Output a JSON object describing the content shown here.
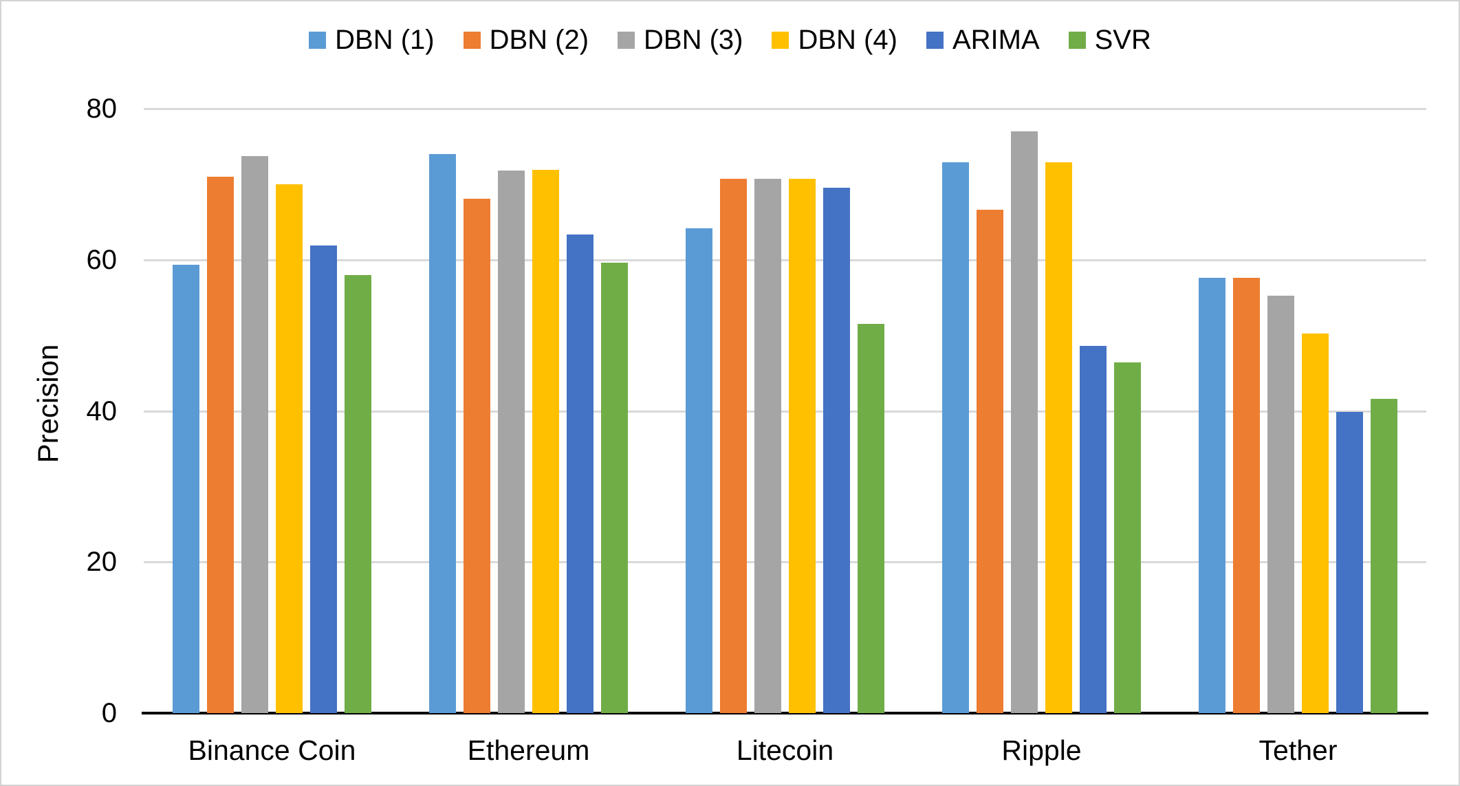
{
  "chart_data": {
    "type": "bar",
    "title": "",
    "xlabel": "",
    "ylabel": "Precision",
    "categories": [
      "Binance Coin",
      "Ethereum",
      "Litecoin",
      "Ripple",
      "Tether"
    ],
    "series": [
      {
        "name": "DBN (1)",
        "color": "#5B9BD5",
        "values": [
          59.3,
          74.0,
          64.2,
          72.9,
          57.6
        ]
      },
      {
        "name": "DBN (2)",
        "color": "#ED7D31",
        "values": [
          71.0,
          68.1,
          70.7,
          66.6,
          57.6
        ]
      },
      {
        "name": "DBN (3)",
        "color": "#A5A5A5",
        "values": [
          73.7,
          71.8,
          70.7,
          77.0,
          55.2
        ]
      },
      {
        "name": "DBN (4)",
        "color": "#FFC000",
        "values": [
          70.0,
          71.9,
          70.7,
          72.9,
          50.2
        ]
      },
      {
        "name": "ARIMA",
        "color": "#4472C4",
        "values": [
          61.9,
          63.3,
          69.5,
          48.6,
          39.9
        ]
      },
      {
        "name": "SVR",
        "color": "#70AD47",
        "values": [
          58.0,
          59.6,
          51.5,
          46.4,
          41.6
        ]
      }
    ],
    "y_ticks": [
      0,
      20,
      40,
      60,
      80
    ],
    "ylim": [
      0,
      80
    ],
    "grid": true,
    "legend_position": "top",
    "colors": {
      "gridline": "#D9D9D9",
      "axis_line": "#000000",
      "background": "#FFFFFF",
      "frame_border": "#D3D3D3",
      "text": "#000000"
    }
  }
}
